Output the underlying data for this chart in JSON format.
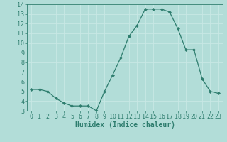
{
  "x": [
    0,
    1,
    2,
    3,
    4,
    5,
    6,
    7,
    8,
    9,
    10,
    11,
    12,
    13,
    14,
    15,
    16,
    17,
    18,
    19,
    20,
    21,
    22,
    23
  ],
  "y": [
    5.2,
    5.2,
    5.0,
    4.3,
    3.8,
    3.5,
    3.5,
    3.5,
    3.0,
    5.0,
    6.7,
    8.5,
    10.7,
    11.8,
    13.5,
    13.5,
    13.5,
    13.2,
    11.5,
    9.3,
    9.3,
    6.3,
    5.0,
    4.8
  ],
  "xlim": [
    -0.5,
    23.5
  ],
  "ylim": [
    3,
    14
  ],
  "yticks": [
    3,
    4,
    5,
    6,
    7,
    8,
    9,
    10,
    11,
    12,
    13,
    14
  ],
  "xticks": [
    0,
    1,
    2,
    3,
    4,
    5,
    6,
    7,
    8,
    9,
    10,
    11,
    12,
    13,
    14,
    15,
    16,
    17,
    18,
    19,
    20,
    21,
    22,
    23
  ],
  "xlabel": "Humidex (Indice chaleur)",
  "line_color": "#2e7d6e",
  "marker": "D",
  "marker_size": 2.0,
  "bg_color": "#b2ddd8",
  "grid_color": "#c8e8e5",
  "axis_color": "#2e7d6e",
  "tick_color": "#2e7d6e",
  "label_fontsize": 7,
  "tick_fontsize": 6
}
